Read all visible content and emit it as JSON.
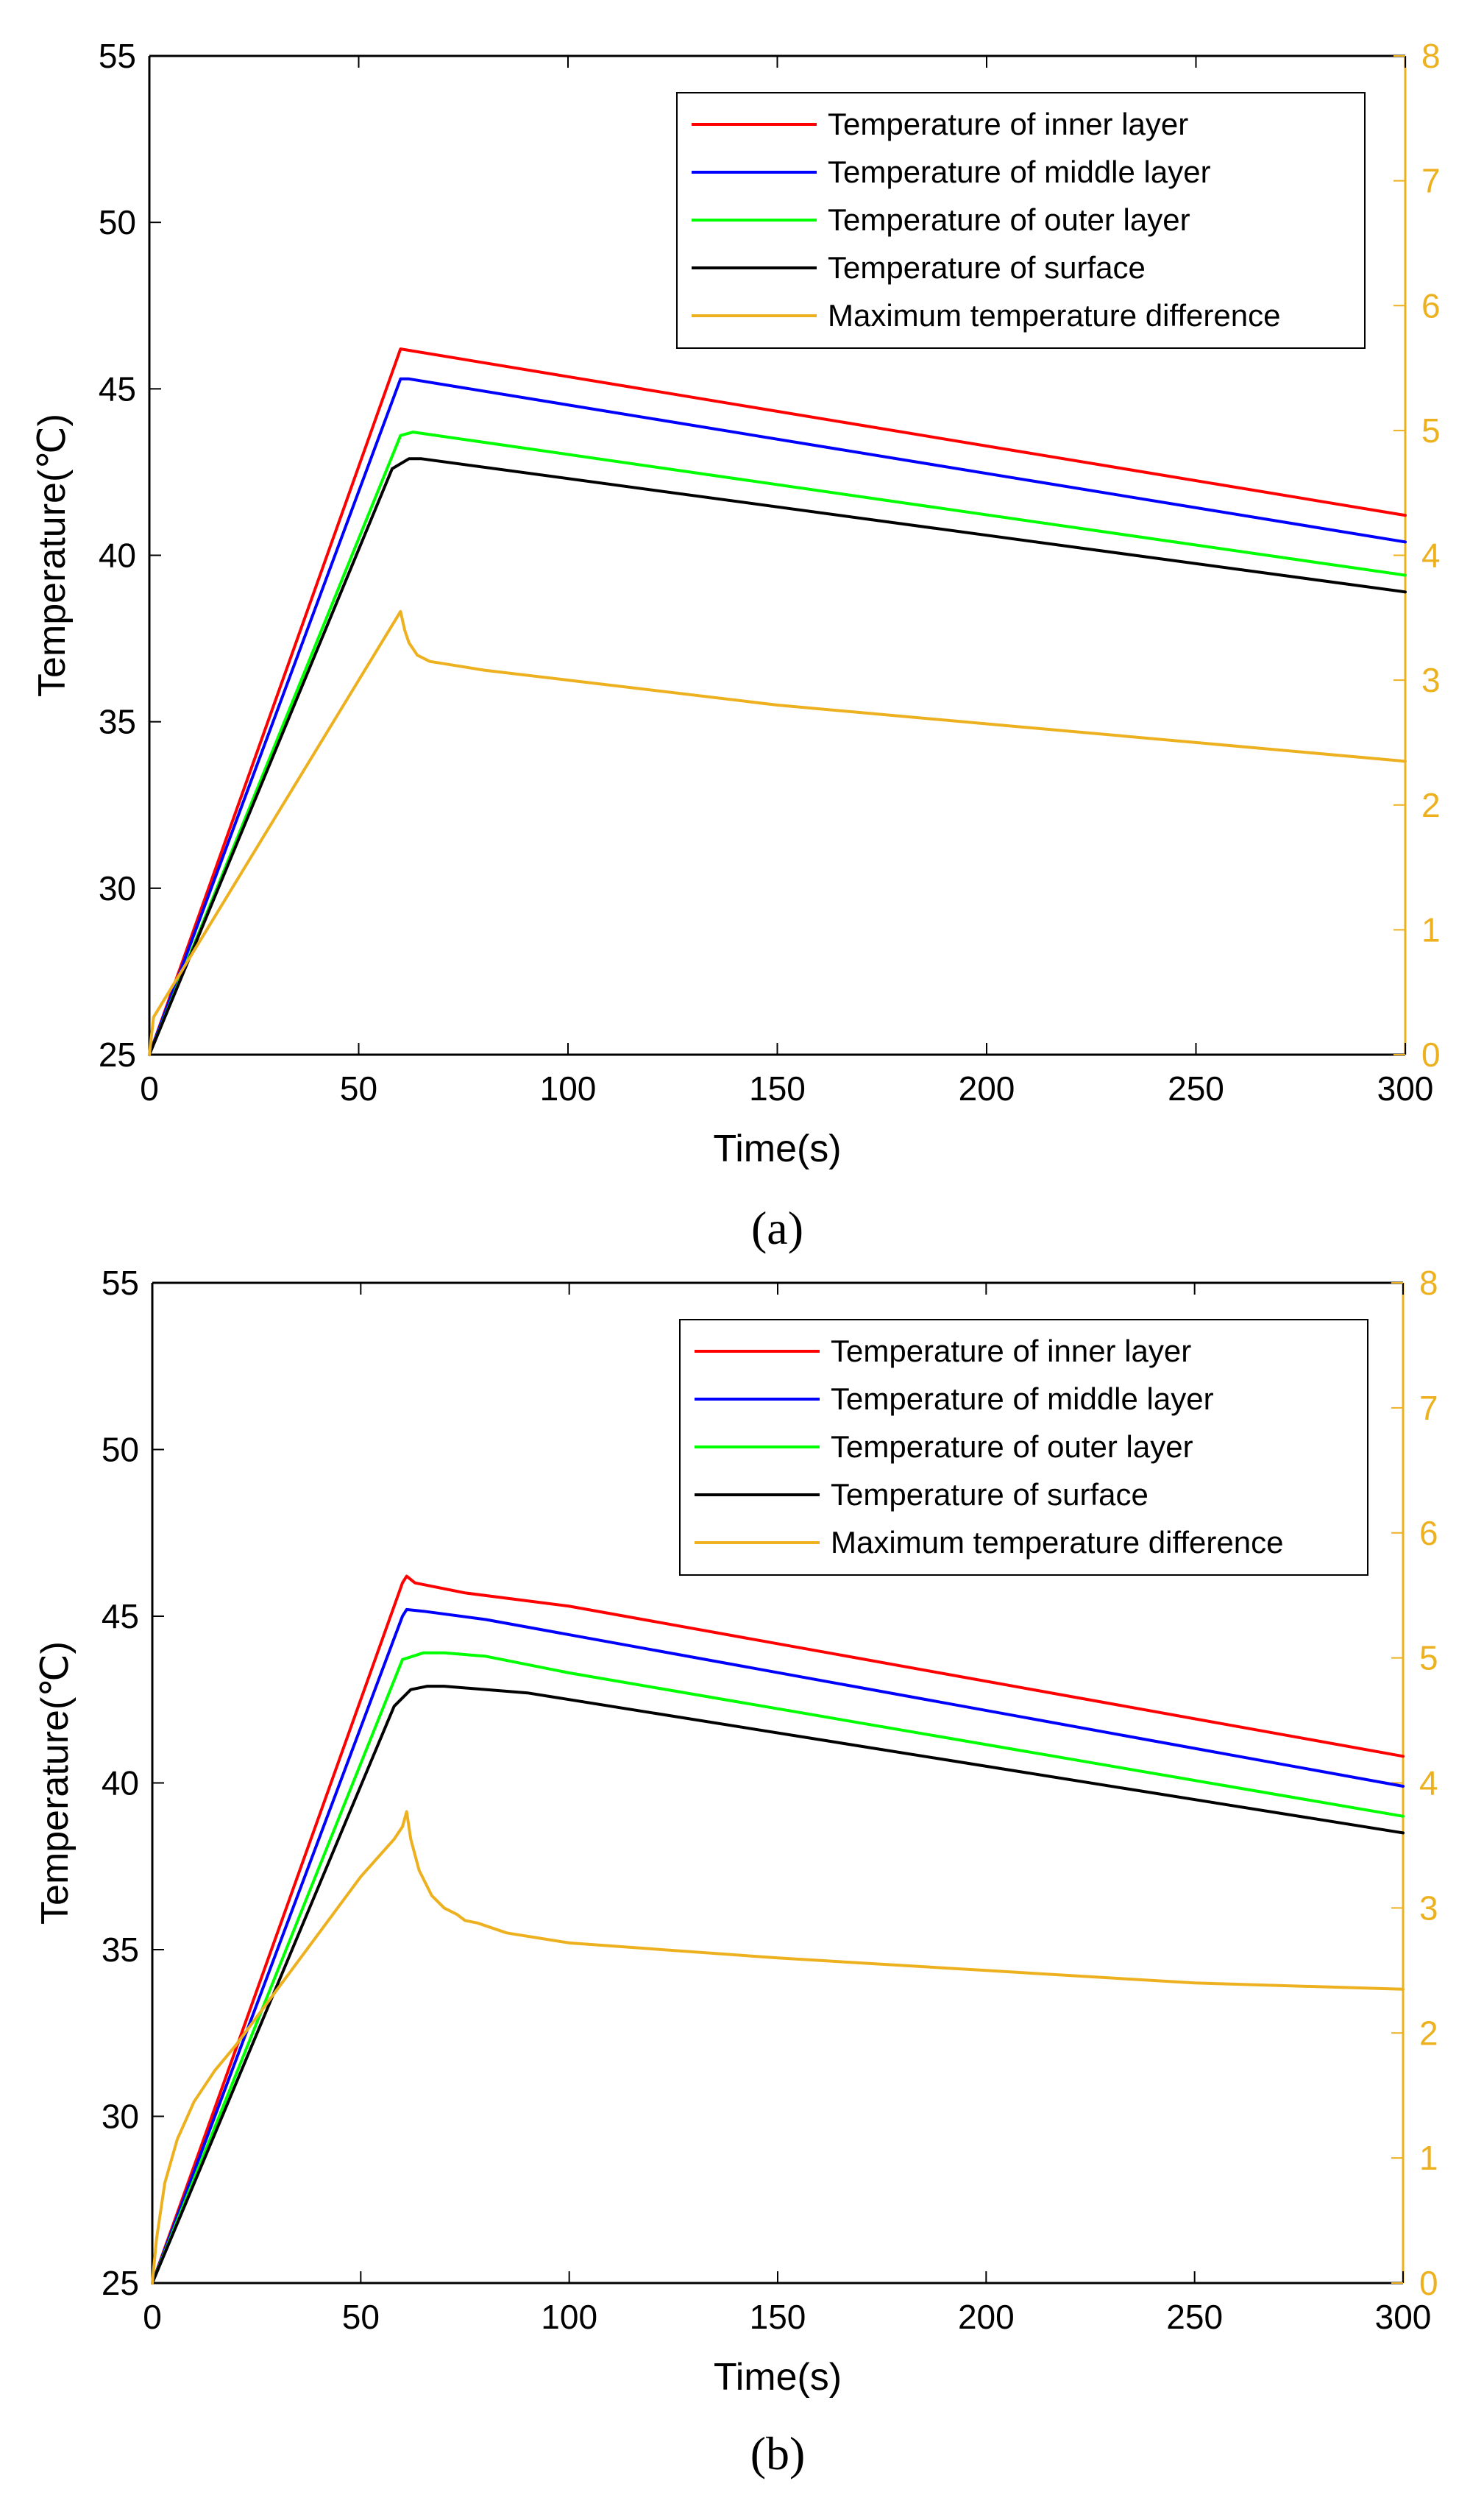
{
  "colors": {
    "inner": "#FF0000",
    "middle": "#0000FF",
    "outer": "#00FF00",
    "surface": "#000000",
    "max_diff": "#EDB120"
  },
  "chart_data": [
    {
      "type": "line",
      "panel_label": "(a)",
      "xlabel": "Time(s)",
      "ylabel": "Temperature(℃)",
      "ylabel_right": "",
      "xlim": [
        0,
        300
      ],
      "ylim": [
        25,
        55
      ],
      "ylim_right": [
        0,
        8
      ],
      "xticks": [
        0,
        50,
        100,
        150,
        200,
        250,
        300
      ],
      "yticks": [
        25,
        30,
        35,
        40,
        45,
        50,
        55
      ],
      "yticks_right": [
        0,
        1,
        2,
        3,
        4,
        5,
        6,
        7,
        8
      ],
      "grid": false,
      "legend_position": "top-right",
      "series": [
        {
          "name": "Temperature of inner layer",
          "axis": "left",
          "color_key": "inner",
          "x": [
            0,
            60,
            300
          ],
          "y": [
            25,
            46.2,
            41.2
          ]
        },
        {
          "name": "Temperature of middle layer",
          "axis": "left",
          "color_key": "middle",
          "x": [
            0,
            60,
            62,
            300
          ],
          "y": [
            25,
            45.3,
            45.3,
            40.4
          ]
        },
        {
          "name": "Temperature of outer layer",
          "axis": "left",
          "color_key": "outer",
          "x": [
            0,
            60,
            63,
            300
          ],
          "y": [
            25,
            43.6,
            43.7,
            39.4
          ]
        },
        {
          "name": "Temperature of surface",
          "axis": "left",
          "color_key": "surface",
          "x": [
            0,
            58,
            62,
            65,
            300
          ],
          "y": [
            25,
            42.6,
            42.9,
            42.9,
            38.9
          ]
        },
        {
          "name": "Maximum temperature difference",
          "axis": "right",
          "color_key": "max_diff",
          "x": [
            0,
            1,
            60,
            61,
            62,
            64,
            67,
            80,
            100,
            150,
            200,
            250,
            300
          ],
          "y": [
            0,
            0.3,
            3.55,
            3.4,
            3.3,
            3.2,
            3.15,
            3.08,
            3.0,
            2.8,
            2.65,
            2.5,
            2.35
          ]
        }
      ]
    },
    {
      "type": "line",
      "panel_label": "(b)",
      "xlabel": "Time(s)",
      "ylabel": "Temperature(℃)",
      "ylabel_right": "",
      "xlim": [
        0,
        300
      ],
      "ylim": [
        25,
        55
      ],
      "ylim_right": [
        0,
        8
      ],
      "xticks": [
        0,
        50,
        100,
        150,
        200,
        250,
        300
      ],
      "yticks": [
        25,
        30,
        35,
        40,
        45,
        50,
        55
      ],
      "yticks_right": [
        0,
        1,
        2,
        3,
        4,
        5,
        6,
        7,
        8
      ],
      "grid": false,
      "legend_position": "top-right",
      "series": [
        {
          "name": "Temperature of inner layer",
          "axis": "left",
          "color_key": "inner",
          "x": [
            0,
            60,
            61,
            63,
            75,
            100,
            300
          ],
          "y": [
            25,
            46.0,
            46.2,
            46.0,
            45.7,
            45.3,
            40.8
          ]
        },
        {
          "name": "Temperature of middle layer",
          "axis": "left",
          "color_key": "middle",
          "x": [
            0,
            60,
            61,
            65,
            80,
            300
          ],
          "y": [
            25,
            45.0,
            45.2,
            45.15,
            44.9,
            39.9
          ]
        },
        {
          "name": "Temperature of outer layer",
          "axis": "left",
          "color_key": "outer",
          "x": [
            0,
            60,
            65,
            70,
            80,
            100,
            300
          ],
          "y": [
            25,
            43.7,
            43.9,
            43.9,
            43.8,
            43.3,
            39.0
          ]
        },
        {
          "name": "Temperature of surface",
          "axis": "left",
          "color_key": "surface",
          "x": [
            0,
            58,
            62,
            66,
            70,
            90,
            300
          ],
          "y": [
            25,
            42.3,
            42.8,
            42.9,
            42.9,
            42.7,
            38.5
          ]
        },
        {
          "name": "Maximum temperature difference",
          "axis": "right",
          "color_key": "max_diff",
          "x": [
            0,
            1,
            3,
            6,
            10,
            15,
            20,
            30,
            40,
            50,
            58,
            60,
            61,
            62,
            64,
            67,
            70,
            73,
            75,
            78,
            85,
            100,
            150,
            200,
            250,
            300
          ],
          "y": [
            0,
            0.35,
            0.8,
            1.15,
            1.45,
            1.7,
            1.9,
            2.35,
            2.8,
            3.25,
            3.55,
            3.65,
            3.77,
            3.55,
            3.3,
            3.1,
            3.0,
            2.95,
            2.9,
            2.88,
            2.8,
            2.72,
            2.6,
            2.5,
            2.4,
            2.35
          ]
        }
      ]
    }
  ]
}
